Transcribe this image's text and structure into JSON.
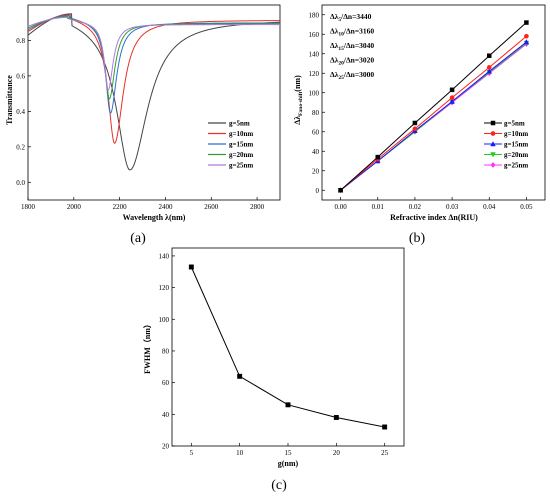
{
  "chart_data": [
    {
      "type": "line",
      "panel_label": "(a)",
      "xlabel": "Wavelength λ(nm)",
      "ylabel": "Transmittance",
      "xlim": [
        1800,
        2900
      ],
      "ylim": [
        -0.1,
        1.0
      ],
      "xticks": [
        "1800",
        "2000",
        "2200",
        "2400",
        "2600",
        "2800"
      ],
      "yticks": [
        "0.0",
        "0.2",
        "0.4",
        "0.6",
        "0.8"
      ],
      "legend_position": "bottom-right",
      "grid": false,
      "series": [
        {
          "name": "g=5nm",
          "color": "#444444",
          "dip_wavelength": 2245,
          "dip_min": 0.07,
          "left_peak_wl": 1990,
          "left_peak": 0.95,
          "right_level": 0.92,
          "left_start": 0.83
        },
        {
          "name": "g=10nm",
          "color": "#e8302a",
          "dip_wavelength": 2178,
          "dip_min": 0.22,
          "left_peak_wl": 1985,
          "left_peak": 0.945,
          "right_level": 0.915,
          "left_start": 0.85
        },
        {
          "name": "g=15nm",
          "color": "#3070c8",
          "dip_wavelength": 2160,
          "dip_min": 0.39,
          "left_peak_wl": 1980,
          "left_peak": 0.94,
          "right_level": 0.9,
          "left_start": 0.86
        },
        {
          "name": "g=20nm",
          "color": "#3a9a3a",
          "dip_wavelength": 2155,
          "dip_min": 0.47,
          "left_peak_wl": 1975,
          "left_peak": 0.935,
          "right_level": 0.895,
          "left_start": 0.87
        },
        {
          "name": "g=25nm",
          "color": "#b07ad8",
          "dip_wavelength": 2150,
          "dip_min": 0.52,
          "left_peak_wl": 1970,
          "left_peak": 0.93,
          "right_level": 0.89,
          "left_start": 0.88
        }
      ]
    },
    {
      "type": "line",
      "panel_label": "(b)",
      "xlabel": "Refractive index Δn(RIU)",
      "ylabel": "Δλ_Fano-shift(nm)",
      "xlim": [
        -0.005,
        0.055
      ],
      "ylim": [
        -10,
        190
      ],
      "xticks": [
        "0.00",
        "0.01",
        "0.02",
        "0.03",
        "0.04",
        "0.05"
      ],
      "yticks": [
        "0",
        "20",
        "40",
        "60",
        "80",
        "100",
        "120",
        "140",
        "160",
        "180"
      ],
      "annotations": [
        {
          "lead": "Δλ",
          "sub": "5",
          "tail": "/Δn=3440"
        },
        {
          "lead": "Δλ",
          "sub": "10",
          "tail": "/Δn=3160"
        },
        {
          "lead": "Δλ",
          "sub": "15",
          "tail": "/Δn=3040"
        },
        {
          "lead": "Δλ",
          "sub": "20",
          "tail": "/Δn=3020"
        },
        {
          "lead": "Δλ",
          "sub": "25",
          "tail": "/Δn=3000"
        }
      ],
      "legend_position": "bottom-right",
      "grid": false,
      "x": [
        0.0,
        0.01,
        0.02,
        0.03,
        0.04,
        0.05
      ],
      "series": [
        {
          "name": "g=5nm",
          "color": "#000000",
          "marker": "square",
          "values": [
            0,
            34,
            69,
            103,
            138,
            172
          ]
        },
        {
          "name": "g=10nm",
          "color": "#ff2020",
          "marker": "circle",
          "values": [
            0,
            32,
            63,
            95,
            126,
            158
          ]
        },
        {
          "name": "g=15nm",
          "color": "#1a1aff",
          "marker": "triangle",
          "values": [
            0,
            30,
            61,
            91,
            122,
            152
          ]
        },
        {
          "name": "g=20nm",
          "color": "#22cc22",
          "marker": "tri-down",
          "values": [
            0,
            30,
            60,
            91,
            121,
            151
          ]
        },
        {
          "name": "g=25nm",
          "color": "#ff30ff",
          "marker": "diamond",
          "values": [
            0,
            30,
            60,
            90,
            120,
            150
          ]
        }
      ]
    },
    {
      "type": "line",
      "panel_label": "(c)",
      "xlabel": "g(nm)",
      "ylabel": "FWHM（nm）",
      "xlim": [
        3,
        27
      ],
      "ylim": [
        20,
        145
      ],
      "xticks": [
        "5",
        "10",
        "15",
        "20",
        "25"
      ],
      "yticks": [
        "20",
        "40",
        "60",
        "80",
        "100",
        "120",
        "140"
      ],
      "grid": false,
      "x": [
        5,
        10,
        15,
        20,
        25
      ],
      "series": [
        {
          "color": "#000000",
          "marker": "square",
          "values": [
            133,
            64,
            46,
            38,
            32
          ]
        }
      ]
    }
  ]
}
